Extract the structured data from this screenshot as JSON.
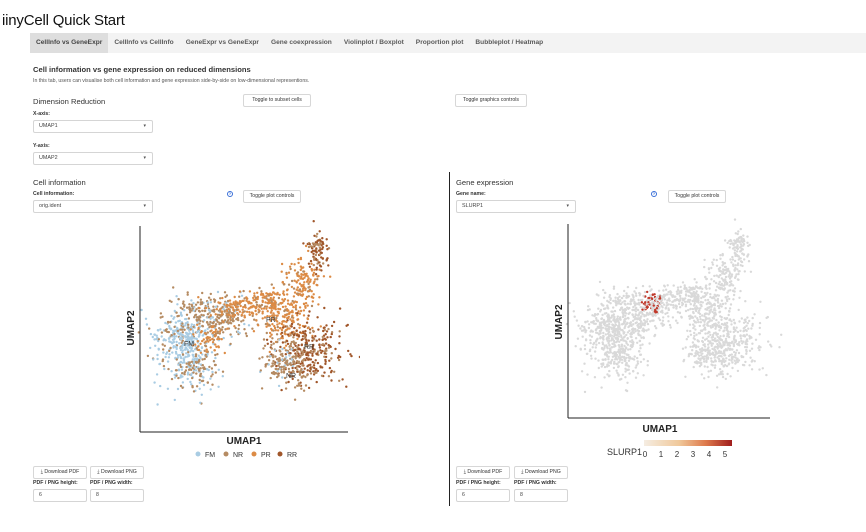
{
  "app": {
    "title": "iinyCell Quick Start"
  },
  "tabs": [
    {
      "label": "CellInfo vs GeneExpr"
    },
    {
      "label": "CellInfo vs CellInfo"
    },
    {
      "label": "GeneExpr vs GeneExpr"
    },
    {
      "label": "Gene coexpression"
    },
    {
      "label": "Violinplot / Boxplot"
    },
    {
      "label": "Proportion plot"
    },
    {
      "label": "Bubbleplot / Heatmap"
    }
  ],
  "section": {
    "title": "Cell information vs gene expression on reduced dimensions",
    "description": "In this tab, users can visualise both cell information and gene expression side-by-side on low-dimensional representions."
  },
  "dimred": {
    "heading": "Dimension Reduction",
    "x_label": "X-axis:",
    "x_value": "UMAP1",
    "y_label": "Y-axis:",
    "y_value": "UMAP2",
    "toggle_subset": "Toggle to subset cells",
    "toggle_graphics": "Toggle graphics controls"
  },
  "cellinfo": {
    "heading": "Cell information",
    "label": "Cell information:",
    "value": "orig.ident",
    "toggle_plot": "Toggle plot controls",
    "xlabel": "UMAP1",
    "ylabel": "UMAP2",
    "cluster_labels": [
      "FM",
      "NR",
      "PR",
      "RR"
    ],
    "legend": [
      {
        "name": "FM",
        "color": "#a9cce3"
      },
      {
        "name": "NR",
        "color": "#b58b62"
      },
      {
        "name": "PR",
        "color": "#dc8b45"
      },
      {
        "name": "RR",
        "color": "#a0562a"
      }
    ],
    "download_pdf": "Download PDF",
    "download_png": "Download PNG",
    "height_label": "PDF / PNG height:",
    "width_label": "PDF / PNG width:",
    "height_value": "6",
    "width_value": "8"
  },
  "geneexpr": {
    "heading": "Gene expression",
    "label": "Gene name:",
    "value": "SLURP1",
    "toggle_plot": "Toggle plot controls",
    "xlabel": "UMAP1",
    "ylabel": "UMAP2",
    "colorbar_title": "SLURP1",
    "colorbar_ticks": [
      "0",
      "1",
      "2",
      "3",
      "4",
      "5"
    ],
    "colors": {
      "low": "#f0e6d8",
      "high": "#b22222"
    },
    "download_pdf": "Download PDF",
    "download_png": "Download PNG",
    "height_label": "PDF / PNG height:",
    "width_label": "PDF / PNG width:",
    "height_value": "6",
    "width_value": "8"
  },
  "icons": {
    "help": "question-circle-icon",
    "download": "download-icon",
    "caret": "chevron-down-icon"
  }
}
